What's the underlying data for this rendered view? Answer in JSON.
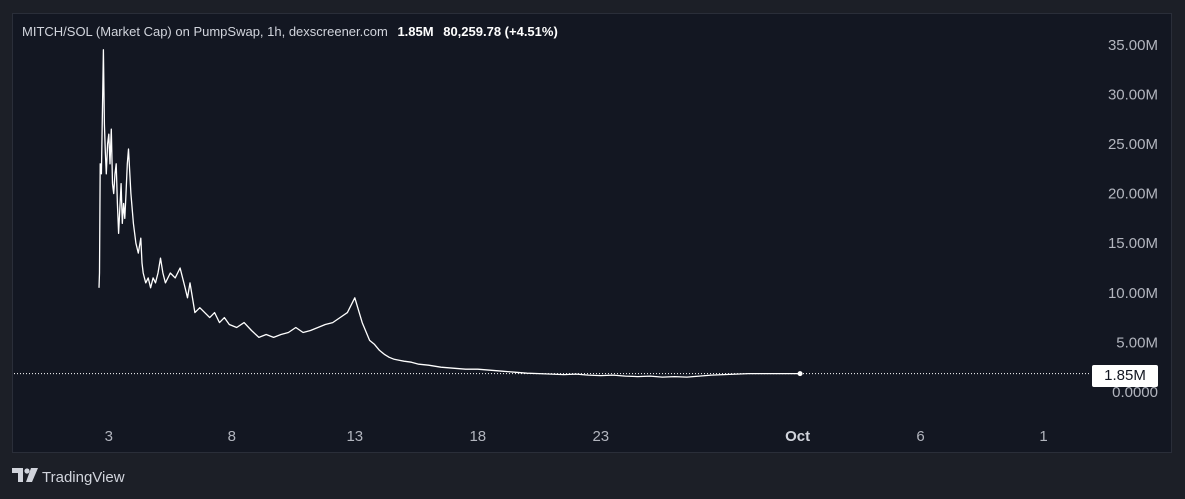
{
  "legend": {
    "title": "MITCH/SOL (Market Cap) on PumpSwap, 1h, dexscreener.com",
    "last_value": "1.85M",
    "change": "80,259.78 (+4.51%)"
  },
  "brand": {
    "name": "TradingView",
    "icon": "tradingview-logo-icon"
  },
  "colors": {
    "background": "#131722",
    "line": "#ffffff",
    "axis_text": "#b2b5be"
  },
  "chart_data": {
    "type": "line",
    "title": "MITCH/SOL (Market Cap) on PumpSwap, 1h, dexscreener.com",
    "last_price_label": "1.85M",
    "y_ticks": [
      {
        "value": 0,
        "label": "0.0000"
      },
      {
        "value": 5,
        "label": "5.00M"
      },
      {
        "value": 10,
        "label": "10.00M"
      },
      {
        "value": 15,
        "label": "15.00M"
      },
      {
        "value": 20,
        "label": "20.00M"
      },
      {
        "value": 25,
        "label": "25.00M"
      },
      {
        "value": 30,
        "label": "30.00M"
      },
      {
        "value": 35,
        "label": "35.00M"
      }
    ],
    "x_ticks": [
      {
        "day": 3,
        "label": "3"
      },
      {
        "day": 8,
        "label": "8"
      },
      {
        "day": 13,
        "label": "13"
      },
      {
        "day": 18,
        "label": "18"
      },
      {
        "day": 23,
        "label": "23"
      },
      {
        "day": 31,
        "label": "Oct",
        "major": true
      },
      {
        "day": 36,
        "label": "6"
      },
      {
        "day": 41,
        "label": "1"
      }
    ],
    "ylim": [
      0,
      35
    ],
    "xlim": [
      0,
      41
    ],
    "y_unit": "M",
    "series": [
      {
        "x": [
          2.6,
          2.62,
          2.65,
          2.7,
          2.75,
          2.78,
          2.82,
          2.86,
          2.9,
          2.95,
          3.0,
          3.05,
          3.1,
          3.15,
          3.2,
          3.25,
          3.3,
          3.35,
          3.4,
          3.5,
          3.55,
          3.6,
          3.65,
          3.7,
          3.75,
          3.8,
          3.9,
          4.0,
          4.1,
          4.2,
          4.3,
          4.35,
          4.4,
          4.5,
          4.6,
          4.7,
          4.8,
          4.9,
          5.0,
          5.1,
          5.2,
          5.3,
          5.5,
          5.7,
          5.9,
          6.1,
          6.2,
          6.3,
          6.5,
          6.7,
          6.9,
          7.1,
          7.3,
          7.5,
          7.7,
          7.9,
          8.2,
          8.5,
          8.8,
          9.1,
          9.4,
          9.7,
          10.0,
          10.3,
          10.6,
          10.9,
          11.2,
          11.5,
          11.8,
          12.1,
          12.4,
          12.7,
          13.0,
          13.3,
          13.6,
          13.8,
          14.0,
          14.2,
          14.4,
          14.6,
          14.8,
          15.0,
          15.3,
          15.6,
          16.0,
          16.5,
          17.0,
          17.5,
          18.0,
          18.5,
          19.0,
          19.5,
          20.0,
          20.5,
          21.0,
          21.5,
          22.0,
          22.5,
          23.0,
          23.5,
          24.0,
          24.5,
          25.0,
          25.5,
          26.0,
          26.5,
          27.0,
          27.5,
          28.0,
          28.5,
          29.0,
          29.5,
          30.0,
          30.5,
          31.1
        ],
        "y": [
          10.5,
          12,
          23,
          22,
          30,
          34.5,
          27,
          24,
          22,
          25,
          26,
          23,
          26.5,
          21,
          20,
          22,
          23,
          19,
          16,
          21,
          17,
          19,
          17.5,
          20,
          23,
          24.5,
          20,
          17,
          15,
          14,
          15.5,
          13,
          12,
          11,
          11.5,
          10.5,
          11.5,
          11,
          12,
          13.5,
          12,
          11,
          12,
          11.5,
          12.5,
          10.5,
          9.5,
          11,
          8,
          8.5,
          8,
          7.5,
          8,
          7,
          7.5,
          6.8,
          6.5,
          7,
          6.2,
          5.5,
          5.8,
          5.5,
          5.8,
          6.0,
          6.5,
          6.0,
          6.2,
          6.5,
          6.8,
          7.0,
          7.5,
          8,
          9.5,
          7.0,
          5.2,
          4.8,
          4.2,
          3.8,
          3.5,
          3.3,
          3.2,
          3.1,
          3.0,
          2.8,
          2.7,
          2.5,
          2.4,
          2.3,
          2.3,
          2.2,
          2.1,
          2.0,
          1.9,
          1.85,
          1.8,
          1.75,
          1.8,
          1.7,
          1.65,
          1.7,
          1.6,
          1.55,
          1.6,
          1.5,
          1.55,
          1.5,
          1.6,
          1.7,
          1.75,
          1.8,
          1.85,
          1.85,
          1.85,
          1.85,
          1.85
        ]
      }
    ]
  }
}
